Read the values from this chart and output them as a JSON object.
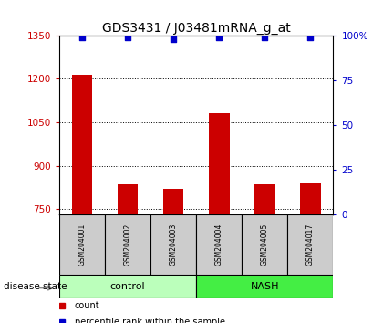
{
  "title": "GDS3431 / J03481mRNA_g_at",
  "samples": [
    "GSM204001",
    "GSM204002",
    "GSM204003",
    "GSM204004",
    "GSM204005",
    "GSM204017"
  ],
  "counts": [
    1215,
    835,
    820,
    1080,
    835,
    840
  ],
  "percentile_ranks": [
    99,
    99,
    98,
    99,
    99,
    99
  ],
  "groups": [
    "control",
    "control",
    "control",
    "NASH",
    "NASH",
    "NASH"
  ],
  "ylim_left": [
    730,
    1350
  ],
  "ylim_right": [
    0,
    100
  ],
  "yticks_left": [
    750,
    900,
    1050,
    1200,
    1350
  ],
  "yticks_right": [
    0,
    25,
    50,
    75,
    100
  ],
  "bar_color": "#cc0000",
  "dot_color": "#0000cc",
  "control_color_light": "#bbffbb",
  "nash_color": "#44ee44",
  "tick_label_color_left": "#cc0000",
  "tick_label_color_right": "#0000cc",
  "bar_bottom": 730,
  "bar_width": 0.45,
  "bg_color": "#ffffff",
  "sample_box_color": "#cccccc",
  "title_fontsize": 10,
  "tick_fontsize": 7.5,
  "sample_fontsize": 5.5,
  "group_fontsize": 8,
  "legend_fontsize": 7,
  "label_fontsize": 7.5
}
